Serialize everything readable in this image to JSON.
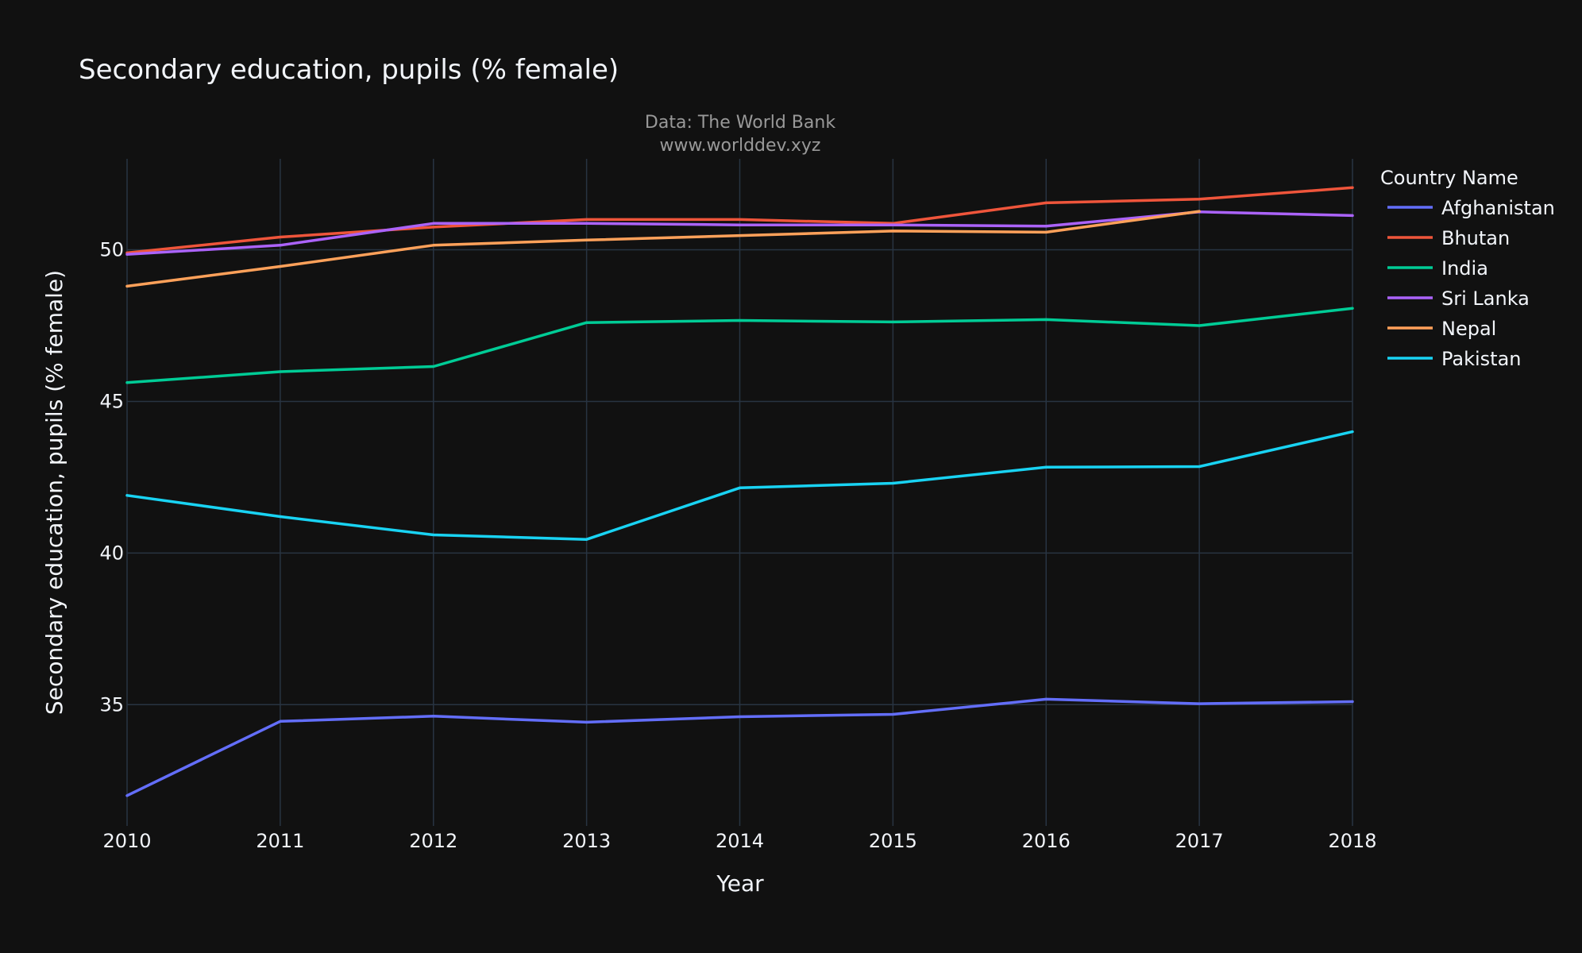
{
  "chart_data": {
    "type": "line",
    "title": "Secondary education, pupils (% female)",
    "annotation_lines": [
      "Data: The World Bank",
      "www.worlddev.xyz"
    ],
    "xlabel": "Year",
    "ylabel": "Secondary education, pupils (% female)",
    "x": [
      2010,
      2011,
      2012,
      2013,
      2014,
      2015,
      2016,
      2017,
      2018
    ],
    "xlim": [
      2010,
      2018
    ],
    "ylim": [
      31,
      53
    ],
    "y_ticks": [
      35,
      40,
      45,
      50
    ],
    "grid": true,
    "legend_title": "Country Name",
    "legend_position": "right",
    "series": [
      {
        "name": "Afghanistan",
        "color": "#636efa",
        "values": [
          32.0,
          34.45,
          34.62,
          34.42,
          34.6,
          34.68,
          35.18,
          35.03,
          35.1
        ]
      },
      {
        "name": "Bhutan",
        "color": "#ef553b",
        "values": [
          49.9,
          50.42,
          50.75,
          51.0,
          51.0,
          50.87,
          51.55,
          51.67,
          52.05
        ]
      },
      {
        "name": "India",
        "color": "#00cc96",
        "values": [
          45.62,
          45.98,
          46.15,
          47.6,
          47.67,
          47.62,
          47.7,
          47.5,
          48.07
        ]
      },
      {
        "name": "Sri Lanka",
        "color": "#ab63fa",
        "values": [
          49.85,
          50.15,
          50.87,
          50.87,
          50.82,
          50.82,
          50.78,
          51.25,
          51.13
        ]
      },
      {
        "name": "Nepal",
        "color": "#ffa15a",
        "values": [
          48.8,
          49.45,
          50.15,
          50.32,
          50.47,
          50.62,
          50.58,
          51.27,
          null
        ]
      },
      {
        "name": "Pakistan",
        "color": "#19d3f3",
        "values": [
          41.9,
          41.2,
          40.6,
          40.45,
          42.15,
          42.3,
          42.83,
          42.85,
          44.0
        ]
      }
    ]
  }
}
